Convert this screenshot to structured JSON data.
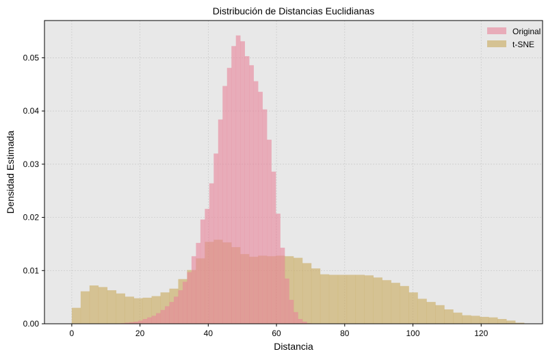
{
  "chart_data": {
    "type": "histogram",
    "title": "Distribución de Distancias Euclidianas",
    "xlabel": "Distancia",
    "ylabel": "Densidad Estimada",
    "xlim": [
      -8,
      138
    ],
    "ylim": [
      0,
      0.057
    ],
    "xticks": [
      0,
      20,
      40,
      60,
      80,
      100,
      120
    ],
    "xtick_labels": [
      "0",
      "20",
      "40",
      "60",
      "80",
      "100",
      "120"
    ],
    "yticks": [
      0.0,
      0.01,
      0.02,
      0.03,
      0.04,
      0.05
    ],
    "ytick_labels": [
      "0.00",
      "0.01",
      "0.02",
      "0.03",
      "0.04",
      "0.05"
    ],
    "grid": true,
    "legend_position": "upper right",
    "background_color": "#e8e8e8",
    "series": [
      {
        "name": "Original",
        "color": "#e8839a",
        "opacity": 0.6,
        "bin_edges": [
          0,
          1.3,
          2.6,
          3.9,
          5.2,
          6.5,
          7.8,
          9.1,
          10.4,
          11.7,
          13.0,
          14.3,
          15.6,
          16.9,
          18.2,
          19.5,
          20.8,
          22.1,
          23.4,
          24.7,
          26.0,
          27.3,
          28.6,
          29.9,
          31.2,
          32.5,
          33.8,
          35.1,
          36.4,
          37.7,
          39.0,
          40.3,
          41.6,
          42.9,
          44.2,
          45.5,
          46.8,
          48.1,
          49.4,
          50.7,
          52.0,
          53.3,
          54.6,
          55.9,
          57.2,
          58.5,
          59.8,
          61.1,
          62.4,
          63.7,
          65.0,
          66.3,
          67.6,
          68.9,
          70.2
        ],
        "values": [
          0.0,
          0.0,
          0.0,
          0.0,
          0.0,
          0.0,
          0.0,
          0.0,
          0.0,
          0.0,
          0.0,
          0.0001,
          0.0002,
          0.0003,
          0.0004,
          0.0006,
          0.0009,
          0.0012,
          0.0015,
          0.002,
          0.0026,
          0.0033,
          0.0041,
          0.0051,
          0.0063,
          0.0079,
          0.0097,
          0.0127,
          0.0152,
          0.0196,
          0.0216,
          0.0264,
          0.032,
          0.0384,
          0.0447,
          0.0481,
          0.0522,
          0.0542,
          0.0531,
          0.0503,
          0.0486,
          0.0456,
          0.0436,
          0.0403,
          0.0346,
          0.0286,
          0.0207,
          0.0143,
          0.0085,
          0.0045,
          0.0022,
          0.0009,
          0.0004,
          0.0001
        ]
      },
      {
        "name": "t-SNE",
        "color": "#c8a85a",
        "opacity": 0.6,
        "bin_edges": [
          0,
          2.6,
          5.2,
          7.8,
          10.4,
          13.0,
          15.6,
          18.2,
          20.8,
          23.4,
          26.0,
          28.6,
          31.2,
          33.8,
          36.4,
          39.0,
          41.6,
          44.2,
          46.8,
          49.4,
          52.0,
          54.6,
          57.2,
          59.8,
          62.4,
          65.0,
          67.6,
          70.2,
          72.8,
          75.4,
          78.0,
          80.6,
          83.2,
          85.8,
          88.4,
          91.0,
          93.6,
          96.2,
          98.8,
          101.4,
          104.0,
          106.6,
          109.2,
          111.8,
          114.4,
          117.0,
          119.6,
          122.2,
          124.8,
          127.4,
          130.0,
          132.6
        ],
        "values": [
          0.003,
          0.0061,
          0.0072,
          0.0069,
          0.0063,
          0.0057,
          0.0051,
          0.0048,
          0.0049,
          0.0052,
          0.0059,
          0.0066,
          0.0084,
          0.0101,
          0.0123,
          0.0154,
          0.0158,
          0.0153,
          0.0144,
          0.0131,
          0.0126,
          0.0128,
          0.0127,
          0.0128,
          0.0127,
          0.0124,
          0.0114,
          0.0104,
          0.0093,
          0.0092,
          0.0092,
          0.0092,
          0.0092,
          0.0091,
          0.0087,
          0.0082,
          0.0077,
          0.0071,
          0.0059,
          0.0047,
          0.0041,
          0.0035,
          0.0027,
          0.0021,
          0.0016,
          0.0015,
          0.0013,
          0.0012,
          0.0009,
          0.0006,
          0.0002
        ]
      }
    ]
  }
}
